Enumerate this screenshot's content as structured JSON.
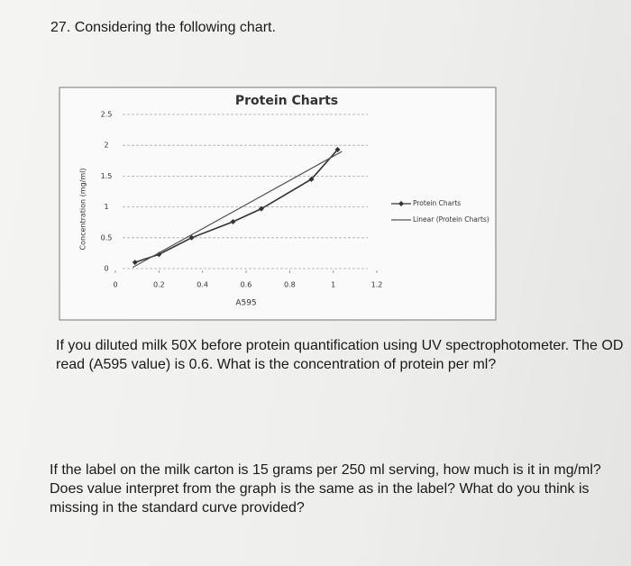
{
  "header": {
    "title": "27. Considering the following chart."
  },
  "chart_data": {
    "type": "line",
    "title": "Protein Charts",
    "x_label": "A595",
    "y_label": "Concentration (mg/ml)",
    "xlim": [
      0,
      1.2
    ],
    "xticks": [
      0,
      0.2,
      0.4,
      0.6,
      0.8,
      1,
      1.2
    ],
    "ylim": [
      0,
      2.5
    ],
    "yticks": [
      0,
      0.5,
      1,
      1.5,
      2,
      2.5
    ],
    "grid": true,
    "legend": "right",
    "series": [
      {
        "name": "Protein Charts",
        "color": "#333333",
        "markers": true,
        "x": [
          0.09,
          0.2,
          0.35,
          0.54,
          0.67,
          0.9,
          1.02
        ],
        "values": [
          0.1,
          0.23,
          0.5,
          0.76,
          0.97,
          1.45,
          1.93
        ]
      },
      {
        "name": "Linear (Protein Charts)",
        "color": "#555555",
        "markers": false,
        "x": [
          0.08,
          1.04
        ],
        "values": [
          0.02,
          1.9
        ]
      }
    ]
  },
  "questions": [
    "If you diluted milk 50X before protein quantification using UV spectrophotometer. The OD read (A595 value) is 0.6.  What is the concentration of protein per ml?",
    "If the label on the milk carton is 15 grams per 250 ml serving, how much is it in mg/ml? Does value interpret from the graph is the same as in the label? What do you think is missing in the standard curve provided?"
  ]
}
